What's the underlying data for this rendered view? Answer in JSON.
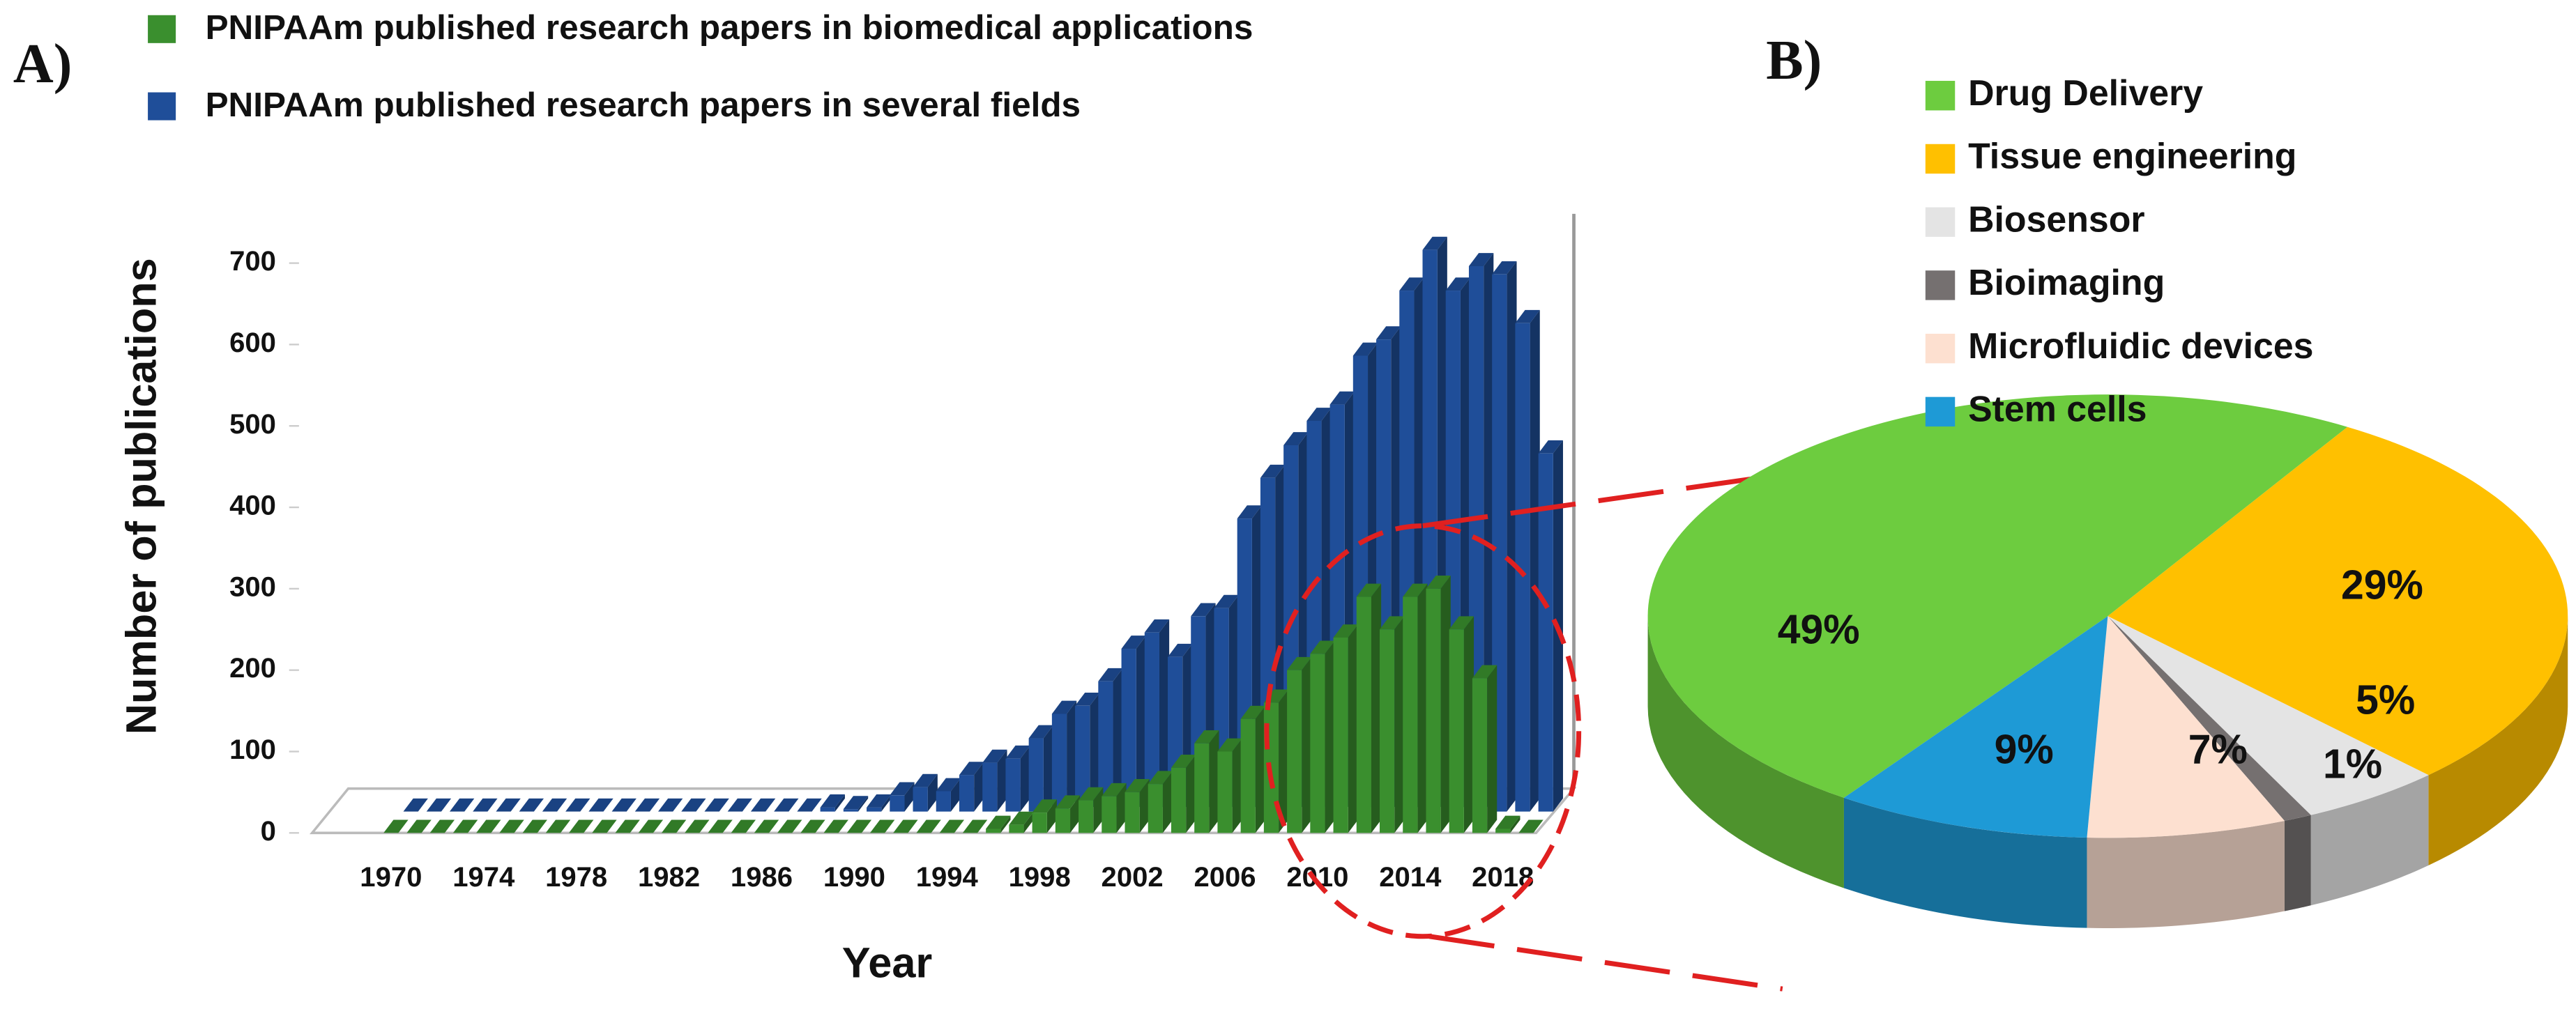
{
  "chart_data": [
    {
      "type": "bar",
      "panel_label": "A)",
      "ylabel": "Number of publications",
      "xlabel": "Year",
      "categories": [
        "1970",
        null,
        null,
        null,
        "1974",
        null,
        null,
        null,
        "1978",
        null,
        null,
        null,
        "1982",
        null,
        null,
        null,
        "1986",
        null,
        null,
        null,
        "1990",
        null,
        null,
        null,
        "1994",
        null,
        null,
        null,
        "1998",
        null,
        null,
        null,
        "2002",
        null,
        null,
        null,
        "2006",
        null,
        null,
        null,
        "2010",
        null,
        null,
        null,
        "2014",
        null,
        null,
        null,
        "2018",
        null
      ],
      "series": [
        {
          "name": "PNIPAAm published research papers in several fields",
          "color": "#1f4e99",
          "values": [
            0,
            0,
            0,
            0,
            0,
            0,
            0,
            0,
            0,
            0,
            0,
            0,
            0,
            0,
            0,
            0,
            0,
            0,
            5,
            3,
            5,
            20,
            30,
            25,
            45,
            60,
            65,
            90,
            120,
            130,
            160,
            200,
            220,
            190,
            240,
            250,
            360,
            410,
            450,
            480,
            500,
            560,
            580,
            640,
            690,
            640,
            670,
            660,
            600,
            440
          ]
        },
        {
          "name": "PNIPAAm published research papers in biomedical applications",
          "color": "#3a8f2e",
          "values": [
            0,
            0,
            0,
            0,
            0,
            0,
            0,
            0,
            0,
            0,
            0,
            0,
            0,
            0,
            0,
            0,
            0,
            0,
            0,
            0,
            0,
            0,
            0,
            0,
            0,
            0,
            5,
            10,
            25,
            30,
            40,
            45,
            50,
            60,
            80,
            110,
            100,
            140,
            160,
            200,
            220,
            240,
            290,
            250,
            290,
            300,
            250,
            190,
            5,
            0
          ]
        }
      ],
      "ylim": [
        0,
        700
      ],
      "yticks": [
        0,
        100,
        200,
        300,
        400,
        500,
        600,
        700
      ]
    },
    {
      "type": "pie",
      "panel_label": "B)",
      "categories": [
        "Drug Delivery",
        "Tissue engineering",
        "Biosensor",
        "Bioimaging",
        "Microfluidic devices",
        "Stem cells"
      ],
      "values": [
        49,
        29,
        5,
        1,
        7,
        9
      ],
      "value_labels": [
        "49%",
        "29%",
        "5%",
        "1%",
        "7%",
        "9%"
      ],
      "colors": [
        "#6dcc3f",
        "#ffc000",
        "#e4e4e4",
        "#757070",
        "#fde0d0",
        "#1e9ad6"
      ]
    }
  ]
}
